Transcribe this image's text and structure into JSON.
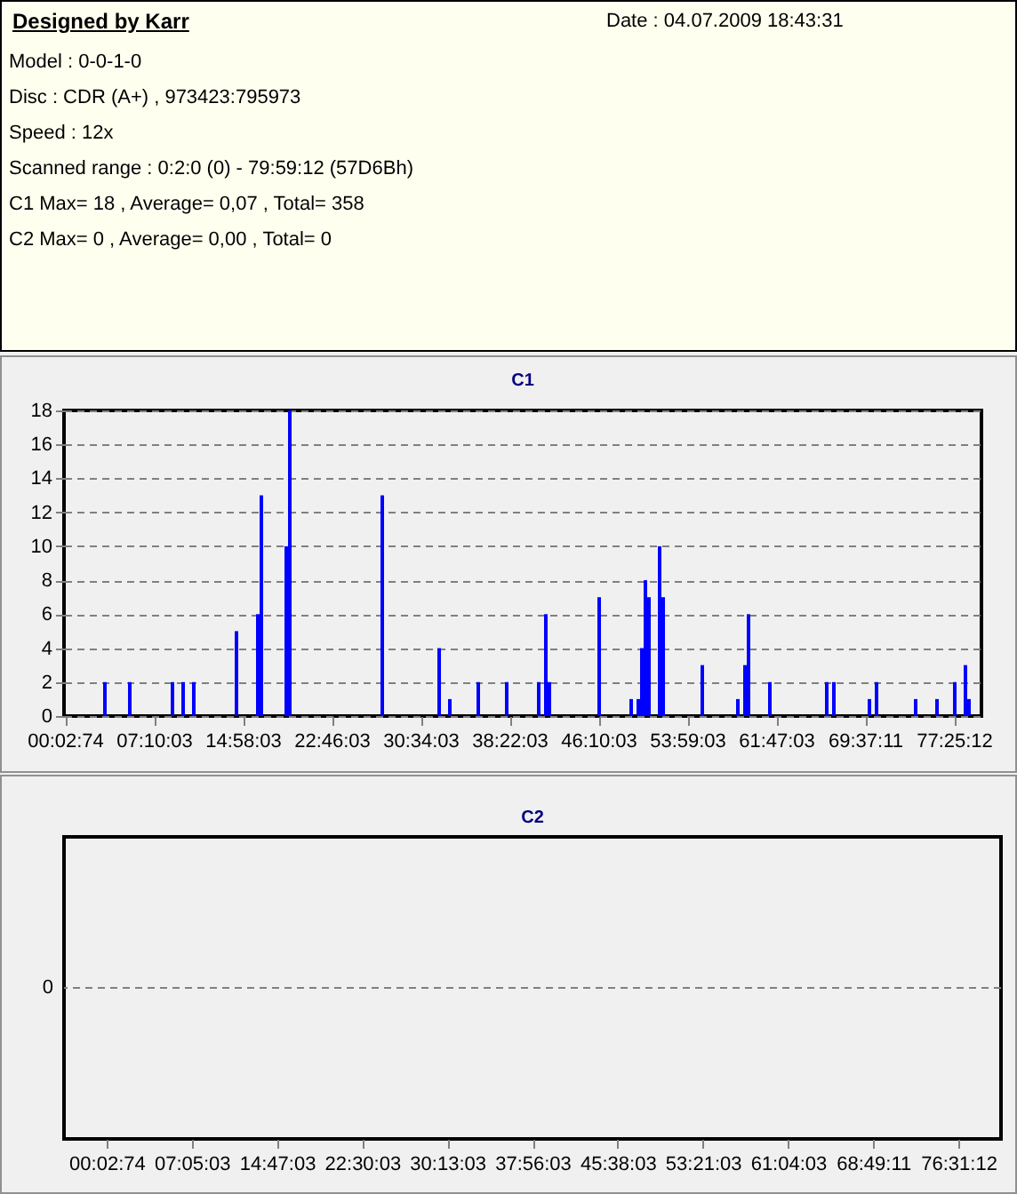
{
  "chart_data": [
    {
      "type": "other",
      "title": "Designed by Karr",
      "annotations": [
        "Date : 04.07.2009 18:43:31",
        "Model : 0-0-1-0",
        "Disc : CDR (A+) , 973423:795973",
        "Speed : 12x",
        "Scanned range : 0:2:0 (0) - 79:59:12 (57D6Bh)",
        "C1 Max= 18 , Average= 0,07 , Total= 358",
        "C2 Max= 0 , Average= 0,00 , Total= 0"
      ]
    },
    {
      "type": "bar",
      "title": "C1",
      "categories": [
        "00:02:74",
        null,
        null,
        null,
        null,
        null,
        null,
        null,
        null,
        null,
        null,
        null,
        null,
        null,
        null,
        null,
        null,
        null,
        null,
        null,
        null,
        null,
        null,
        null,
        null,
        "07:10:03",
        null,
        null,
        null,
        null,
        null,
        null,
        null,
        null,
        null,
        null,
        null,
        null,
        null,
        null,
        null,
        null,
        null,
        null,
        null,
        null,
        null,
        null,
        null,
        null,
        "14:58:03",
        null,
        null,
        null,
        null,
        null,
        null,
        null,
        null,
        null,
        null,
        null,
        null,
        null,
        null,
        null,
        null,
        null,
        null,
        null,
        null,
        null,
        null,
        null,
        null,
        "22:46:03",
        null,
        null,
        null,
        null,
        null,
        null,
        null,
        null,
        null,
        null,
        null,
        null,
        null,
        null,
        null,
        null,
        null,
        null,
        null,
        null,
        null,
        null,
        null,
        null,
        "30:34:03",
        null,
        null,
        null,
        null,
        null,
        null,
        null,
        null,
        null,
        null,
        null,
        null,
        null,
        null,
        null,
        null,
        null,
        null,
        null,
        null,
        null,
        null,
        null,
        null,
        "38:22:03",
        null,
        null,
        null,
        null,
        null,
        null,
        null,
        null,
        null,
        null,
        null,
        null,
        null,
        null,
        null,
        null,
        null,
        null,
        null,
        null,
        null,
        null,
        null,
        null,
        "46:10:03",
        null,
        null,
        null,
        null,
        null,
        null,
        null,
        null,
        null,
        null,
        null,
        null,
        null,
        null,
        null,
        null,
        null,
        null,
        null,
        null,
        null,
        null,
        null,
        null,
        "53:59:03",
        null,
        null,
        null,
        null,
        null,
        null,
        null,
        null,
        null,
        null,
        null,
        null,
        null,
        null,
        null,
        null,
        null,
        null,
        null,
        null,
        null,
        null,
        null,
        null,
        "61:47:03",
        null,
        null,
        null,
        null,
        null,
        null,
        null,
        null,
        null,
        null,
        null,
        null,
        null,
        null,
        null,
        null,
        null,
        null,
        null,
        null,
        null,
        null,
        null,
        null,
        "69:37:11",
        null,
        null,
        null,
        null,
        null,
        null,
        null,
        null,
        null,
        null,
        null,
        null,
        null,
        null,
        null,
        null,
        null,
        null,
        null,
        null,
        null,
        null,
        null,
        null,
        "77:25:12",
        null,
        null,
        null,
        null,
        null,
        null,
        null
      ],
      "values": [
        0,
        0,
        0,
        0,
        0,
        0,
        0,
        0,
        0,
        0,
        0,
        2,
        0,
        0,
        0,
        0,
        0,
        0,
        2,
        0,
        0,
        0,
        0,
        0,
        0,
        0,
        0,
        0,
        0,
        0,
        2,
        0,
        0,
        2,
        0,
        0,
        2,
        0,
        0,
        0,
        0,
        0,
        0,
        0,
        0,
        0,
        0,
        0,
        5,
        0,
        0,
        0,
        0,
        0,
        6,
        13,
        0,
        0,
        0,
        0,
        0,
        0,
        10,
        18,
        0,
        0,
        0,
        0,
        0,
        0,
        0,
        0,
        0,
        0,
        0,
        0,
        0,
        0,
        0,
        0,
        0,
        0,
        0,
        0,
        0,
        0,
        0,
        0,
        0,
        13,
        0,
        0,
        0,
        0,
        0,
        0,
        0,
        0,
        0,
        0,
        0,
        0,
        0,
        0,
        0,
        4,
        0,
        0,
        1,
        0,
        0,
        0,
        0,
        0,
        0,
        0,
        2,
        0,
        0,
        0,
        0,
        0,
        0,
        0,
        2,
        0,
        0,
        0,
        0,
        0,
        0,
        0,
        0,
        2,
        0,
        6,
        2,
        0,
        0,
        0,
        0,
        0,
        0,
        0,
        0,
        0,
        0,
        0,
        0,
        0,
        7,
        0,
        0,
        0,
        0,
        0,
        0,
        0,
        0,
        1,
        0,
        1,
        4,
        8,
        7,
        0,
        0,
        10,
        7,
        0,
        0,
        0,
        0,
        0,
        0,
        0,
        0,
        0,
        0,
        3,
        0,
        0,
        0,
        0,
        0,
        0,
        0,
        0,
        0,
        1,
        0,
        3,
        6,
        0,
        0,
        0,
        0,
        0,
        2,
        0,
        0,
        0,
        0,
        0,
        0,
        0,
        0,
        0,
        0,
        0,
        0,
        0,
        0,
        0,
        2,
        0,
        2,
        0,
        0,
        0,
        0,
        0,
        0,
        0,
        0,
        0,
        1,
        0,
        2,
        0,
        0,
        0,
        0,
        0,
        0,
        0,
        0,
        0,
        0,
        1,
        0,
        0,
        0,
        0,
        0,
        1,
        0,
        0,
        0,
        0,
        2,
        0,
        0,
        3,
        1,
        0,
        0,
        0
      ],
      "color": "#0000ff",
      "ylim": [
        0,
        18
      ],
      "yticks": [
        0,
        2,
        4,
        6,
        8,
        10,
        12,
        14,
        16,
        18
      ],
      "grid": "y"
    },
    {
      "type": "other",
      "title": "C2",
      "annotations": [
        "0",
        "00:02:74",
        "07:05:03",
        "14:47:03",
        "22:30:03",
        "30:13:03",
        "37:56:03",
        "45:38:03",
        "53:21:03",
        "61:04:03",
        "68:49:11",
        "76:31:12"
      ]
    }
  ]
}
